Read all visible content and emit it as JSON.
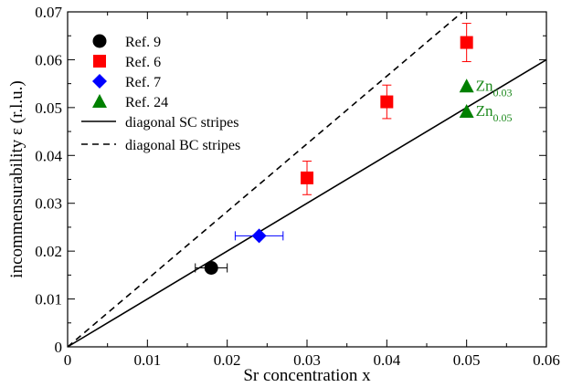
{
  "chart_data": {
    "type": "scatter",
    "xlabel": "Sr concentration x",
    "ylabel": "incommensurability ε (r.l.u.)",
    "xlim": [
      0,
      0.06
    ],
    "ylim": [
      0,
      0.07
    ],
    "xticks": [
      "0",
      "0.01",
      "0.02",
      "0.03",
      "0.04",
      "0.05",
      "0.06"
    ],
    "yticks": [
      "0",
      "0.01",
      "0.02",
      "0.03",
      "0.04",
      "0.05",
      "0.06",
      "0.07"
    ],
    "legend_position": "top-left",
    "grid": false,
    "series": [
      {
        "name": "Ref. 9",
        "marker": "circle",
        "color": "#000000",
        "points": [
          {
            "x": 0.018,
            "y": 0.0165,
            "xerr": 0.002,
            "yerr": 0
          }
        ]
      },
      {
        "name": "Ref. 6",
        "marker": "square",
        "color": "#ff0000",
        "points": [
          {
            "x": 0.03,
            "y": 0.0353,
            "xerr": 0,
            "yerr": 0.0035
          },
          {
            "x": 0.04,
            "y": 0.0512,
            "xerr": 0,
            "yerr": 0.0035
          },
          {
            "x": 0.05,
            "y": 0.0636,
            "xerr": 0,
            "yerr": 0.004
          }
        ]
      },
      {
        "name": "Ref. 7",
        "marker": "diamond",
        "color": "#0000ff",
        "points": [
          {
            "x": 0.024,
            "y": 0.0232,
            "xerr": 0.003,
            "yerr": 0
          }
        ]
      },
      {
        "name": "Ref. 24",
        "marker": "triangle",
        "color": "#008000",
        "points": [
          {
            "x": 0.05,
            "y": 0.0545,
            "xerr": 0,
            "yerr": 0
          },
          {
            "x": 0.05,
            "y": 0.0492,
            "xerr": 0,
            "yerr": 0
          }
        ]
      }
    ],
    "lines": [
      {
        "name": "diagonal SC stripes",
        "style": "solid",
        "slope": 1.0,
        "color": "#000000"
      },
      {
        "name": "diagonal BC stripes",
        "style": "dashed",
        "slope": 1.4142,
        "color": "#000000"
      }
    ],
    "annotations": [
      {
        "text": "Zn",
        "sub": "0.03",
        "x": 0.05,
        "y": 0.0545,
        "color": "#1e8a1e"
      },
      {
        "text": "Zn",
        "sub": "0.05",
        "x": 0.05,
        "y": 0.0492,
        "color": "#1e8a1e"
      }
    ]
  }
}
